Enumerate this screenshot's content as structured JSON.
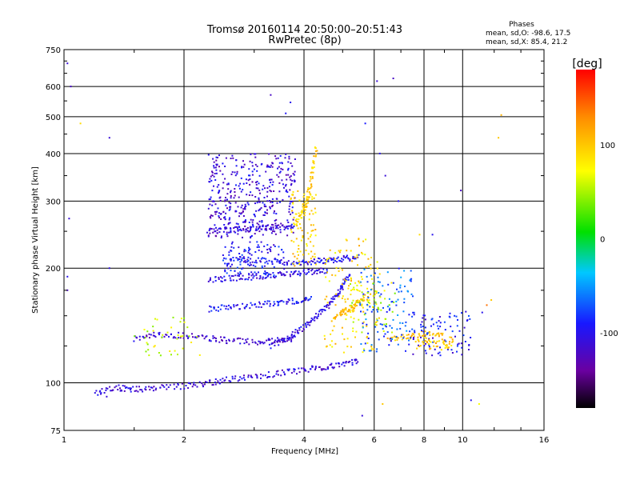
{
  "chart_data": {
    "type": "scatter",
    "title": "Tromsø 20160114 20:50:00–20:51:43",
    "subtitle": "RwPretec (8p)",
    "phases_header": "Phases",
    "phases_o": "mean, sd,O: -98.6, 17.5",
    "phases_x": "mean, sd,X:  85.4, 21.2",
    "xlabel": "Frequency [MHz]",
    "ylabel": "Stationary phase Virtual Height [km]",
    "x_scale": "log",
    "y_scale": "log",
    "xlim": [
      1,
      16
    ],
    "ylim": [
      75,
      750
    ],
    "xticks": [
      1,
      2,
      4,
      6,
      8,
      10,
      16
    ],
    "xtick_labels": [
      "1",
      "2",
      "4",
      "6",
      "8",
      "10",
      "16"
    ],
    "yticks": [
      75,
      100,
      200,
      300,
      400,
      500,
      600,
      750
    ],
    "ytick_labels": [
      "75",
      "100",
      "200",
      "300",
      "400",
      "500",
      "600",
      "750"
    ],
    "grid": true,
    "colorbar": {
      "label": "[deg]",
      "range": [
        -180,
        180
      ],
      "ticks": [
        100,
        0,
        -100
      ],
      "tick_labels": [
        "100",
        "0",
        "-100"
      ],
      "colormap": "rainbow"
    },
    "traces": [
      {
        "x": [
          1.2,
          1.35,
          1.5,
          1.7,
          2.0,
          2.3,
          2.6,
          3.0,
          3.5,
          4.0,
          4.5,
          5.0,
          5.5
        ],
        "y": [
          94,
          97,
          96,
          97,
          98,
          100,
          102,
          104,
          106,
          108,
          110,
          112,
          114
        ],
        "phase": -110
      },
      {
        "x": [
          1.5,
          1.7,
          2.0,
          2.3,
          2.6,
          3.0,
          3.4,
          3.8
        ],
        "y": [
          130,
          134,
          133,
          131,
          129,
          128,
          129,
          131
        ],
        "phase": -115
      },
      {
        "x": [
          3.3,
          3.6,
          3.9,
          4.2,
          4.5,
          4.8,
          5.0,
          5.2
        ],
        "y": [
          125,
          130,
          137,
          146,
          156,
          168,
          180,
          192
        ],
        "phase": -105
      },
      {
        "x": [
          2.3,
          2.6,
          3.0,
          3.4,
          3.8,
          4.2
        ],
        "y": [
          156,
          158,
          160,
          162,
          164,
          166
        ],
        "phase": -95
      },
      {
        "x": [
          2.3,
          2.6,
          3.0,
          3.4,
          3.8,
          4.2,
          4.6
        ],
        "y": [
          186,
          188,
          190,
          192,
          194,
          196,
          198
        ],
        "phase": -105
      },
      {
        "x": [
          2.6,
          3.0,
          3.4,
          3.8,
          4.2,
          4.6,
          5.0,
          5.5
        ],
        "y": [
          212,
          210,
          208,
          206,
          208,
          210,
          212,
          214
        ],
        "phase": -100
      },
      {
        "x": [
          2.3,
          2.6,
          3.0,
          3.4,
          3.8
        ],
        "y": [
          250,
          252,
          254,
          256,
          258
        ],
        "phase": -110
      },
      {
        "x": [
          3.8,
          4.0,
          4.1,
          4.2,
          4.3
        ],
        "y": [
          260,
          285,
          310,
          360,
          420
        ],
        "phase": 95
      },
      {
        "x": [
          4.8,
          5.1,
          5.4,
          5.7
        ],
        "y": [
          150,
          155,
          160,
          168
        ],
        "phase": 105
      },
      {
        "x": [
          6.5,
          7.2,
          8.0,
          9.0
        ],
        "y": [
          130,
          132,
          135,
          133
        ],
        "phase": 105
      }
    ],
    "clusters": [
      {
        "x": [
          2.3,
          3.8
        ],
        "y": [
          240,
          400
        ],
        "phase": -110,
        "n": 420
      },
      {
        "x": [
          2.5,
          3.6
        ],
        "y": [
          190,
          235
        ],
        "phase": -95,
        "n": 120
      },
      {
        "x": [
          3.7,
          4.3
        ],
        "y": [
          200,
          320
        ],
        "phase": 95,
        "n": 90
      },
      {
        "x": [
          4.5,
          6.2
        ],
        "y": [
          120,
          240
        ],
        "phase": 90,
        "n": 140
      },
      {
        "x": [
          5.5,
          7.5
        ],
        "y": [
          120,
          200
        ],
        "phase": -70,
        "n": 120
      },
      {
        "x": [
          7.5,
          10.5
        ],
        "y": [
          118,
          155
        ],
        "phase": -95,
        "n": 90
      },
      {
        "x": [
          7.5,
          9.5
        ],
        "y": [
          122,
          132
        ],
        "phase": 100,
        "n": 50
      },
      {
        "x": [
          1.5,
          2.2
        ],
        "y": [
          118,
          150
        ],
        "phase": 60,
        "n": 40
      },
      {
        "x": [
          5.2,
          6.8
        ],
        "y": [
          135,
          185
        ],
        "phase": 60,
        "n": 60
      }
    ],
    "scatter": [
      {
        "x": 1.02,
        "y": 690,
        "phase": -110
      },
      {
        "x": 1.04,
        "y": 600,
        "phase": -120
      },
      {
        "x": 1.03,
        "y": 270,
        "phase": -110
      },
      {
        "x": 1.02,
        "y": 175,
        "phase": -120
      },
      {
        "x": 1.02,
        "y": 190,
        "phase": -100
      },
      {
        "x": 1.1,
        "y": 480,
        "phase": 90
      },
      {
        "x": 1.3,
        "y": 440,
        "phase": -110
      },
      {
        "x": 1.3,
        "y": 200,
        "phase": -105
      },
      {
        "x": 1.28,
        "y": 92,
        "phase": -110
      },
      {
        "x": 3.3,
        "y": 570,
        "phase": -120
      },
      {
        "x": 3.7,
        "y": 545,
        "phase": -100
      },
      {
        "x": 3.6,
        "y": 510,
        "phase": -95
      },
      {
        "x": 5.7,
        "y": 480,
        "phase": -90
      },
      {
        "x": 6.1,
        "y": 620,
        "phase": -110
      },
      {
        "x": 6.7,
        "y": 630,
        "phase": -120
      },
      {
        "x": 6.2,
        "y": 400,
        "phase": -100
      },
      {
        "x": 6.4,
        "y": 350,
        "phase": -110
      },
      {
        "x": 6.9,
        "y": 300,
        "phase": -100
      },
      {
        "x": 9.9,
        "y": 320,
        "phase": -120
      },
      {
        "x": 12.5,
        "y": 505,
        "phase": 110
      },
      {
        "x": 12.3,
        "y": 440,
        "phase": 100
      },
      {
        "x": 11.5,
        "y": 160,
        "phase": 140
      },
      {
        "x": 11.2,
        "y": 153,
        "phase": -100
      },
      {
        "x": 11.8,
        "y": 165,
        "phase": 100
      },
      {
        "x": 11.0,
        "y": 88,
        "phase": 70
      },
      {
        "x": 5.6,
        "y": 82,
        "phase": -110
      },
      {
        "x": 6.3,
        "y": 88,
        "phase": 100
      },
      {
        "x": 10.5,
        "y": 90,
        "phase": -100
      },
      {
        "x": 7.8,
        "y": 245,
        "phase": 90
      },
      {
        "x": 8.4,
        "y": 245,
        "phase": -100
      }
    ]
  }
}
